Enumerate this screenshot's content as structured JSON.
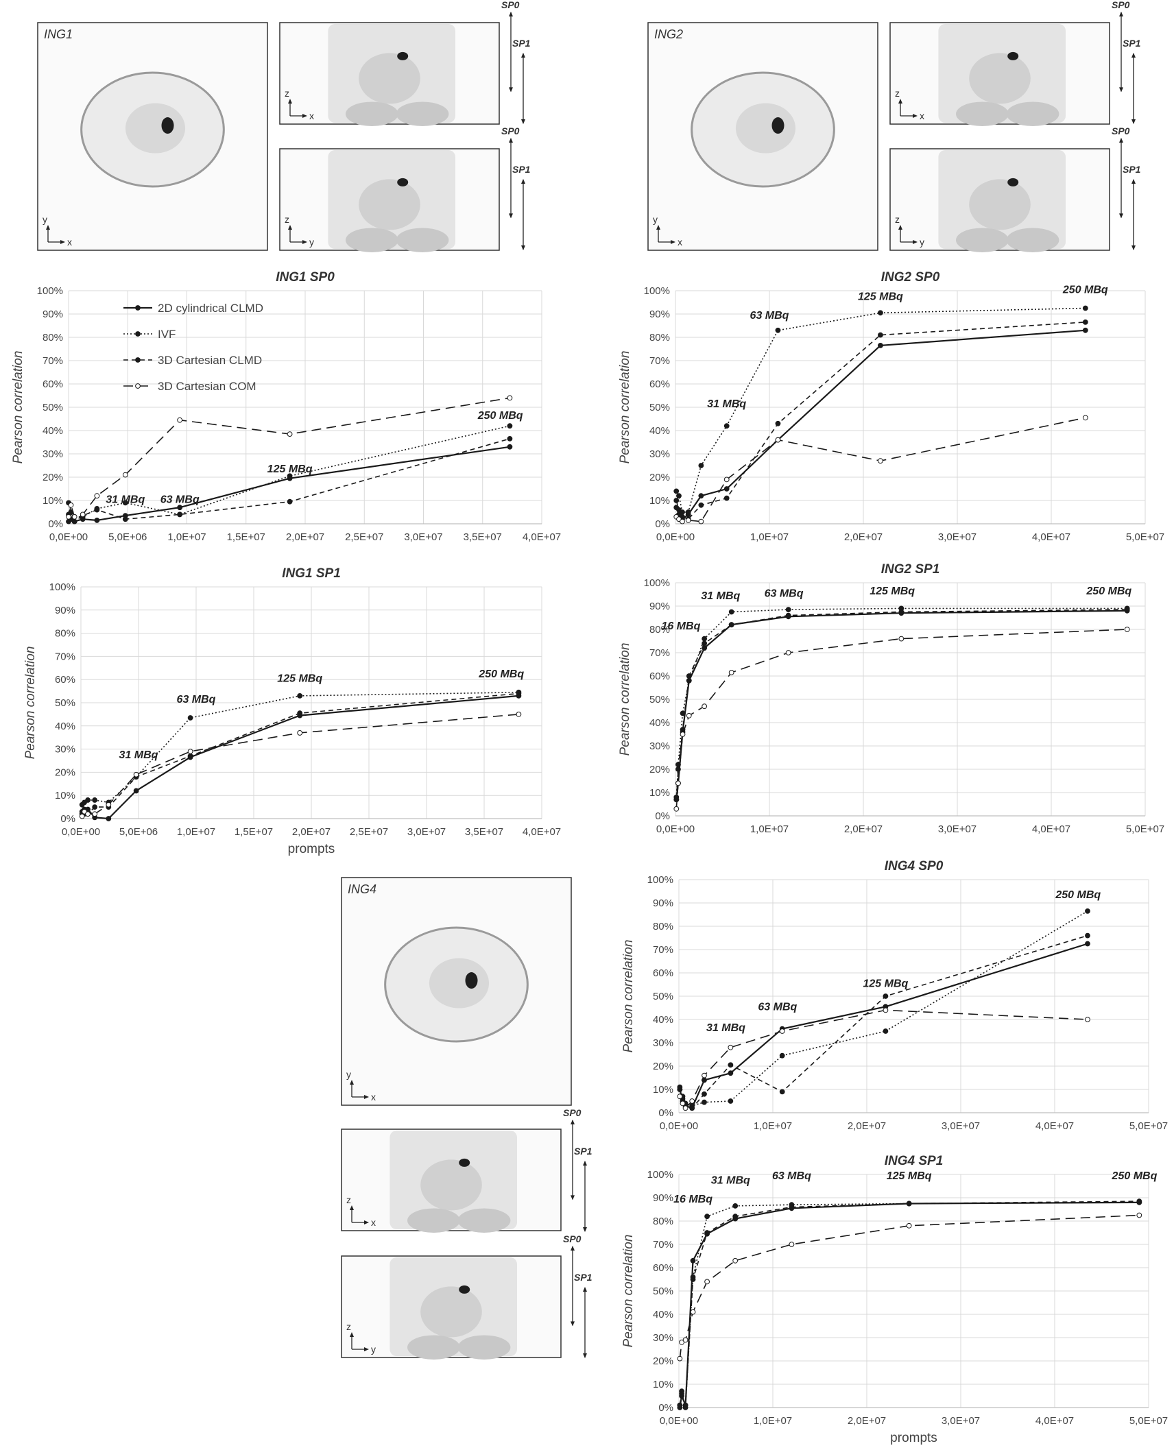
{
  "chart_data": [
    {
      "type": "line",
      "title": "ING1 SP0",
      "xlabel": "",
      "ylabel": "Pearson correlation",
      "xlim": [
        0,
        40000000
      ],
      "ylim": [
        0,
        1
      ],
      "x_ticks": [
        "0,0E+00",
        "5,0E+06",
        "1,0E+07",
        "1,5E+07",
        "2,0E+07",
        "2,5E+07",
        "3,0E+07",
        "3,5E+07",
        "4,0E+07"
      ],
      "y_ticks": [
        "0%",
        "10%",
        "20%",
        "30%",
        "40%",
        "50%",
        "60%",
        "70%",
        "80%",
        "90%",
        "100%"
      ],
      "grid": true,
      "legend": "top-left",
      "series": [
        {
          "name": "2D cylindrical CLMD",
          "style": "solid",
          "x": [
            0,
            200000,
            500000,
            1200000,
            2400000,
            4800000,
            9400000,
            18700000,
            37300000
          ],
          "y": [
            0.01,
            0.02,
            0.01,
            0.02,
            0.015,
            0.035,
            0.07,
            0.195,
            0.33
          ]
        },
        {
          "name": "IVF",
          "style": "dotted",
          "x": [
            0,
            200000,
            500000,
            1200000,
            2400000,
            4800000,
            9400000,
            18700000,
            37300000
          ],
          "y": [
            0.04,
            0.02,
            0.03,
            0.03,
            0.065,
            0.09,
            0.04,
            0.205,
            0.42
          ]
        },
        {
          "name": "3D Cartesian CLMD",
          "style": "dashed",
          "x": [
            0,
            200000,
            500000,
            1200000,
            2400000,
            4800000,
            9400000,
            18700000,
            37300000
          ],
          "y": [
            0.09,
            0.05,
            0.01,
            0.035,
            0.06,
            0.02,
            0.04,
            0.095,
            0.365
          ]
        },
        {
          "name": "3D Cartesian COM",
          "style": "longdash",
          "x": [
            0,
            200000,
            500000,
            1200000,
            2400000,
            4800000,
            9400000,
            18700000,
            37300000
          ],
          "y": [
            0.03,
            0.08,
            0.03,
            0.04,
            0.12,
            0.21,
            0.445,
            0.385,
            0.54
          ]
        }
      ],
      "annotations": [
        {
          "text": "31 MBq",
          "x": 4800000,
          "y": 0.09
        },
        {
          "text": "63 MBq",
          "x": 9400000,
          "y": 0.09
        },
        {
          "text": "125 MBq",
          "x": 18700000,
          "y": 0.22
        },
        {
          "text": "250 MBq",
          "x": 36500000,
          "y": 0.45
        }
      ]
    },
    {
      "type": "line",
      "title": "ING2 SP0",
      "xlabel": "",
      "ylabel": "Pearson correlation",
      "xlim": [
        0,
        55000000
      ],
      "ylim": [
        0,
        1
      ],
      "x_ticks": [
        "0,0E+00",
        "1,0E+07",
        "2,0E+07",
        "3,0E+07",
        "4,0E+07",
        "5,0E+07"
      ],
      "y_ticks": [
        "0%",
        "10%",
        "20%",
        "30%",
        "40%",
        "50%",
        "60%",
        "70%",
        "80%",
        "90%",
        "100%"
      ],
      "grid": true,
      "series": [
        {
          "name": "2D cylindrical CLMD",
          "style": "solid",
          "x": [
            100000,
            400000,
            800000,
            1500000,
            3000000,
            6000000,
            12000000,
            24000000,
            48000000
          ],
          "y": [
            0.07,
            0.04,
            0.02,
            0.04,
            0.12,
            0.15,
            0.36,
            0.765,
            0.83
          ]
        },
        {
          "name": "IVF",
          "style": "dotted",
          "x": [
            100000,
            400000,
            800000,
            1500000,
            3000000,
            6000000,
            12000000,
            24000000,
            48000000
          ],
          "y": [
            0.14,
            0.12,
            0.05,
            0.05,
            0.25,
            0.42,
            0.83,
            0.905,
            0.925
          ]
        },
        {
          "name": "3D Cartesian CLMD",
          "style": "dashed",
          "x": [
            100000,
            400000,
            800000,
            1500000,
            3000000,
            6000000,
            12000000,
            24000000,
            48000000
          ],
          "y": [
            0.1,
            0.06,
            0.03,
            0.02,
            0.08,
            0.11,
            0.43,
            0.81,
            0.865
          ]
        },
        {
          "name": "3D Cartesian COM",
          "style": "longdash",
          "x": [
            100000,
            400000,
            800000,
            1500000,
            3000000,
            6000000,
            12000000,
            24000000,
            48000000
          ],
          "y": [
            0.03,
            0.02,
            0.01,
            0.015,
            0.01,
            0.19,
            0.36,
            0.27,
            0.455
          ]
        }
      ],
      "annotations": [
        {
          "text": "31 MBq",
          "x": 6000000,
          "y": 0.5
        },
        {
          "text": "63 MBq",
          "x": 11000000,
          "y": 0.88
        },
        {
          "text": "125 MBq",
          "x": 24000000,
          "y": 0.96
        },
        {
          "text": "250 MBq",
          "x": 48000000,
          "y": 0.99
        }
      ]
    },
    {
      "type": "line",
      "title": "ING1 SP1",
      "xlabel": "prompts",
      "ylabel": "Pearson correlation",
      "xlim": [
        0,
        40000000
      ],
      "ylim": [
        0,
        1
      ],
      "x_ticks": [
        "0,0E+00",
        "5,0E+06",
        "1,0E+07",
        "1,5E+07",
        "2,0E+07",
        "2,5E+07",
        "3,0E+07",
        "3,5E+07",
        "4,0E+07"
      ],
      "y_ticks": [
        "0%",
        "10%",
        "20%",
        "30%",
        "40%",
        "50%",
        "60%",
        "70%",
        "80%",
        "90%",
        "100%"
      ],
      "grid": true,
      "series": [
        {
          "name": "2D cylindrical CLMD",
          "style": "solid",
          "x": [
            100000,
            300000,
            600000,
            1200000,
            2400000,
            4800000,
            9500000,
            19000000,
            38000000
          ],
          "y": [
            0.03,
            0.02,
            0.04,
            0.005,
            0.0,
            0.12,
            0.265,
            0.445,
            0.53
          ]
        },
        {
          "name": "IVF",
          "style": "dotted",
          "x": [
            100000,
            300000,
            600000,
            1200000,
            2400000,
            4800000,
            9500000,
            19000000,
            38000000
          ],
          "y": [
            0.06,
            0.07,
            0.08,
            0.08,
            0.07,
            0.18,
            0.435,
            0.53,
            0.545
          ]
        },
        {
          "name": "3D Cartesian CLMD",
          "style": "dashed",
          "x": [
            100000,
            300000,
            600000,
            1200000,
            2400000,
            4800000,
            9500000,
            19000000,
            38000000
          ],
          "y": [
            0.02,
            0.04,
            0.02,
            0.05,
            0.05,
            0.18,
            0.27,
            0.455,
            0.54
          ]
        },
        {
          "name": "3D Cartesian COM",
          "style": "longdash",
          "x": [
            100000,
            300000,
            600000,
            1200000,
            2400000,
            4800000,
            9500000,
            19000000,
            38000000
          ],
          "y": [
            0.01,
            0.03,
            0.02,
            0.02,
            0.06,
            0.19,
            0.29,
            0.37,
            0.45
          ]
        }
      ],
      "annotations": [
        {
          "text": "31 MBq",
          "x": 5000000,
          "y": 0.26
        },
        {
          "text": "63 MBq",
          "x": 10000000,
          "y": 0.5
        },
        {
          "text": "125 MBq",
          "x": 19000000,
          "y": 0.59
        },
        {
          "text": "250 MBq",
          "x": 36500000,
          "y": 0.61
        }
      ]
    },
    {
      "type": "line",
      "title": "ING2 SP1",
      "xlabel": "",
      "ylabel": "Pearson correlation",
      "xlim": [
        0,
        52000000
      ],
      "ylim": [
        0,
        1
      ],
      "x_ticks": [
        "0,0E+00",
        "1,0E+07",
        "2,0E+07",
        "3,0E+07",
        "4,0E+07",
        "5,0E+07"
      ],
      "y_ticks": [
        "0%",
        "10%",
        "20%",
        "30%",
        "40%",
        "50%",
        "60%",
        "70%",
        "80%",
        "90%",
        "100%"
      ],
      "grid": true,
      "series": [
        {
          "name": "2D cylindrical CLMD",
          "style": "solid",
          "x": [
            100000,
            300000,
            800000,
            1500000,
            3200000,
            6200000,
            12500000,
            25000000,
            50000000
          ],
          "y": [
            0.07,
            0.14,
            0.36,
            0.58,
            0.72,
            0.82,
            0.855,
            0.87,
            0.88
          ]
        },
        {
          "name": "IVF",
          "style": "dotted",
          "x": [
            100000,
            300000,
            800000,
            1500000,
            3200000,
            6200000,
            12500000,
            25000000,
            50000000
          ],
          "y": [
            0.08,
            0.22,
            0.44,
            0.58,
            0.76,
            0.875,
            0.885,
            0.89,
            0.89
          ]
        },
        {
          "name": "3D Cartesian CLMD",
          "style": "dashed",
          "x": [
            100000,
            300000,
            800000,
            1500000,
            3200000,
            6200000,
            12500000,
            25000000,
            50000000
          ],
          "y": [
            0.07,
            0.2,
            0.37,
            0.6,
            0.74,
            0.82,
            0.86,
            0.875,
            0.885
          ]
        },
        {
          "name": "3D Cartesian COM",
          "style": "longdash",
          "x": [
            100000,
            300000,
            800000,
            1500000,
            3200000,
            6200000,
            12500000,
            25000000,
            50000000
          ],
          "y": [
            0.03,
            0.14,
            0.35,
            0.43,
            0.47,
            0.615,
            0.7,
            0.76,
            0.8
          ]
        }
      ],
      "annotations": [
        {
          "text": "16 MBq",
          "x": 600000,
          "y": 0.8
        },
        {
          "text": "31 MBq",
          "x": 5000000,
          "y": 0.93
        },
        {
          "text": "63 MBq",
          "x": 12000000,
          "y": 0.94
        },
        {
          "text": "125 MBq",
          "x": 24000000,
          "y": 0.95
        },
        {
          "text": "250 MBq",
          "x": 48000000,
          "y": 0.95
        }
      ]
    },
    {
      "type": "line",
      "title": "ING4 SP0",
      "xlabel": "",
      "ylabel": "Pearson correlation",
      "xlim": [
        0,
        50000000
      ],
      "ylim": [
        0,
        1
      ],
      "x_ticks": [
        "0,0E+00",
        "1,0E+07",
        "2,0E+07",
        "3,0E+07",
        "4,0E+07",
        "5,0E+07"
      ],
      "y_ticks": [
        "0%",
        "10%",
        "20%",
        "30%",
        "40%",
        "50%",
        "60%",
        "70%",
        "80%",
        "90%",
        "100%"
      ],
      "grid": true,
      "series": [
        {
          "name": "2D cylindrical CLMD",
          "style": "solid",
          "x": [
            100000,
            400000,
            700000,
            1400000,
            2700000,
            5500000,
            11000000,
            22000000,
            43500000
          ],
          "y": [
            0.1,
            0.05,
            0.03,
            0.02,
            0.14,
            0.17,
            0.36,
            0.455,
            0.725
          ]
        },
        {
          "name": "IVF",
          "style": "dotted",
          "x": [
            100000,
            400000,
            700000,
            1400000,
            2700000,
            5500000,
            11000000,
            22000000,
            43500000
          ],
          "y": [
            0.1,
            0.06,
            0.04,
            0.03,
            0.045,
            0.05,
            0.245,
            0.35,
            0.865
          ]
        },
        {
          "name": "3D Cartesian CLMD",
          "style": "dashed",
          "x": [
            100000,
            400000,
            700000,
            1400000,
            2700000,
            5500000,
            11000000,
            22000000,
            43500000
          ],
          "y": [
            0.11,
            0.07,
            0.03,
            0.02,
            0.08,
            0.205,
            0.09,
            0.5,
            0.76
          ]
        },
        {
          "name": "3D Cartesian COM",
          "style": "longdash",
          "x": [
            100000,
            400000,
            700000,
            1400000,
            2700000,
            5500000,
            11000000,
            22000000,
            43500000
          ],
          "y": [
            0.07,
            0.04,
            0.02,
            0.05,
            0.16,
            0.28,
            0.35,
            0.44,
            0.4
          ]
        }
      ],
      "annotations": [
        {
          "text": "31 MBq",
          "x": 5000000,
          "y": 0.35
        },
        {
          "text": "63 MBq",
          "x": 10500000,
          "y": 0.44
        },
        {
          "text": "125 MBq",
          "x": 22000000,
          "y": 0.54
        },
        {
          "text": "250 MBq",
          "x": 42500000,
          "y": 0.92
        }
      ]
    },
    {
      "type": "line",
      "title": "ING4 SP1",
      "xlabel": "prompts",
      "ylabel": "Pearson correlation",
      "xlim": [
        0,
        50000000
      ],
      "ylim": [
        0,
        1
      ],
      "x_ticks": [
        "0,0E+00",
        "1,0E+07",
        "2,0E+07",
        "3,0E+07",
        "4,0E+07",
        "5,0E+07"
      ],
      "y_ticks": [
        "0%",
        "10%",
        "20%",
        "30%",
        "40%",
        "50%",
        "60%",
        "70%",
        "80%",
        "90%",
        "100%"
      ],
      "grid": true,
      "series": [
        {
          "name": "2D cylindrical CLMD",
          "style": "solid",
          "x": [
            100000,
            300000,
            700000,
            1500000,
            3000000,
            6000000,
            12000000,
            24500000,
            49000000
          ],
          "y": [
            0.0,
            0.05,
            0.01,
            0.63,
            0.745,
            0.81,
            0.855,
            0.875,
            0.88
          ]
        },
        {
          "name": "IVF",
          "style": "dotted",
          "x": [
            100000,
            300000,
            700000,
            1500000,
            3000000,
            6000000,
            12000000,
            24500000,
            49000000
          ],
          "y": [
            0.01,
            0.07,
            0.0,
            0.56,
            0.82,
            0.865,
            0.87,
            0.875,
            0.88
          ]
        },
        {
          "name": "3D Cartesian CLMD",
          "style": "dashed",
          "x": [
            100000,
            300000,
            700000,
            1500000,
            3000000,
            6000000,
            12000000,
            24500000,
            49000000
          ],
          "y": [
            0.01,
            0.06,
            0.01,
            0.55,
            0.75,
            0.82,
            0.86,
            0.875,
            0.885
          ]
        },
        {
          "name": "3D Cartesian COM",
          "style": "longdash",
          "x": [
            100000,
            300000,
            700000,
            1500000,
            3000000,
            6000000,
            12000000,
            24500000,
            49000000
          ],
          "y": [
            0.21,
            0.28,
            0.29,
            0.41,
            0.54,
            0.63,
            0.7,
            0.78,
            0.825
          ]
        }
      ],
      "annotations": [
        {
          "text": "16 MBq",
          "x": 1500000,
          "y": 0.88
        },
        {
          "text": "31 MBq",
          "x": 5500000,
          "y": 0.96
        },
        {
          "text": "63 MBq",
          "x": 12000000,
          "y": 0.98
        },
        {
          "text": "125 MBq",
          "x": 24500000,
          "y": 0.98
        },
        {
          "text": "250 MBq",
          "x": 48500000,
          "y": 0.98
        }
      ]
    }
  ],
  "image_panels": [
    {
      "id": "ing1",
      "label": "ING1",
      "transverse_axes": [
        "y",
        "x"
      ],
      "coronal_axes": [
        "z",
        "x"
      ],
      "sagittal_axes": [
        "z",
        "y"
      ],
      "range_labels": [
        "SP0",
        "SP1"
      ]
    },
    {
      "id": "ing2",
      "label": "ING2",
      "transverse_axes": [
        "y",
        "x"
      ],
      "coronal_axes": [
        "z",
        "x"
      ],
      "sagittal_axes": [
        "z",
        "y"
      ],
      "range_labels": [
        "SP0",
        "SP1"
      ]
    },
    {
      "id": "ing4",
      "label": "ING4",
      "transverse_axes": [
        "y",
        "x"
      ],
      "coronal_axes": [
        "z",
        "x"
      ],
      "sagittal_axes": [
        "z",
        "y"
      ],
      "range_labels": [
        "SP0",
        "SP1"
      ]
    }
  ]
}
